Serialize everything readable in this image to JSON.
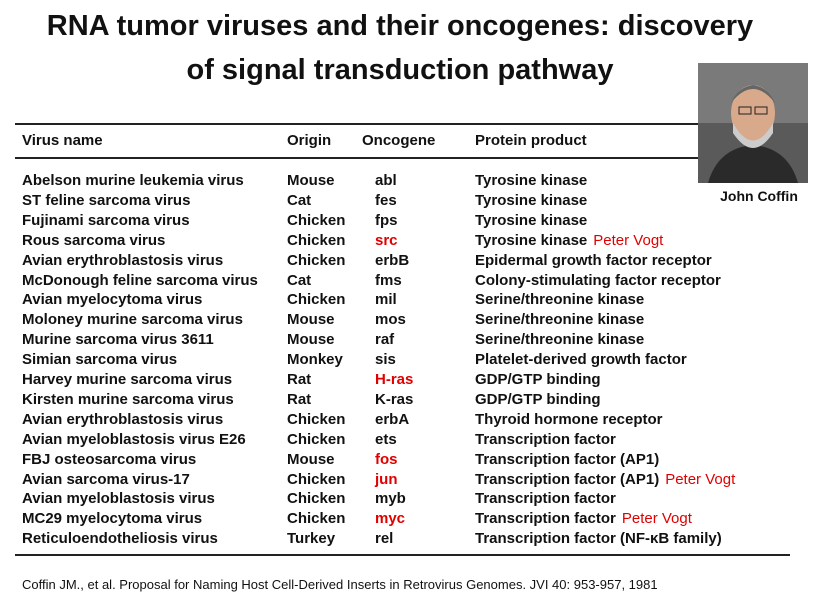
{
  "title_lines": [
    "RNA tumor viruses and their oncogenes: discovery",
    "of signal transduction pathway"
  ],
  "photo_caption": "John Coffin",
  "table": {
    "header": [
      "Virus  name",
      "Origin",
      "Oncogene",
      "Protein product"
    ],
    "highlight_color": "#e00000",
    "rows": [
      {
        "virus": "Abelson murine leukemia virus",
        "origin": "Mouse",
        "oncogene": "abl",
        "protein": "Tyrosine kinase"
      },
      {
        "virus": "ST feline sarcoma virus",
        "origin": "Cat",
        "oncogene": "fes",
        "protein": "Tyrosine kinase"
      },
      {
        "virus": "Fujinami sarcoma virus",
        "origin": "Chicken",
        "oncogene": "fps",
        "protein": "Tyrosine kinase"
      },
      {
        "virus": "Rous sarcoma virus",
        "origin": "Chicken",
        "oncogene": "src",
        "protein": "Tyrosine kinase",
        "note": "Peter Vogt",
        "highlight": true
      },
      {
        "virus": "Avian erythroblastosis virus",
        "origin": "Chicken",
        "oncogene": "erbB",
        "protein": "Epidermal growth factor receptor"
      },
      {
        "virus": "McDonough feline sarcoma virus",
        "origin": "Cat",
        "oncogene": "fms",
        "protein": "Colony-stimulating factor receptor"
      },
      {
        "virus": "Avian myelocytoma virus",
        "origin": "Chicken",
        "oncogene": "mil",
        "protein": "Serine/threonine kinase"
      },
      {
        "virus": "Moloney murine sarcoma virus",
        "origin": "Mouse",
        "oncogene": "mos",
        "protein": "Serine/threonine kinase"
      },
      {
        "virus": "Murine sarcoma virus 3611",
        "origin": "Mouse",
        "oncogene": "raf",
        "protein": "Serine/threonine kinase"
      },
      {
        "virus": "Simian sarcoma virus",
        "origin": "Monkey",
        "oncogene": "sis",
        "protein": "Platelet-derived growth factor"
      },
      {
        "virus": "Harvey murine sarcoma virus",
        "origin": "Rat",
        "oncogene": "H-ras",
        "protein": "GDP/GTP binding",
        "highlight": true
      },
      {
        "virus": "Kirsten murine sarcoma virus",
        "origin": "Rat",
        "oncogene": "K-ras",
        "protein": "GDP/GTP binding"
      },
      {
        "virus": "Avian erythroblastosis virus",
        "origin": "Chicken",
        "oncogene": "erbA",
        "protein": "Thyroid hormone receptor"
      },
      {
        "virus": "Avian myeloblastosis virus E26",
        "origin": "Chicken",
        "oncogene": "ets",
        "protein": "Transcription factor"
      },
      {
        "virus": "FBJ osteosarcoma virus",
        "origin": "Mouse",
        "oncogene": "fos",
        "protein": "Transcription factor (AP1)",
        "highlight": true
      },
      {
        "virus": "Avian sarcoma virus-17",
        "origin": "Chicken",
        "oncogene": "jun",
        "protein": "Transcription factor (AP1)",
        "note": "Peter Vogt",
        "highlight": true
      },
      {
        "virus": "Avian myeloblastosis virus",
        "origin": "Chicken",
        "oncogene": "myb",
        "protein": "Transcription factor"
      },
      {
        "virus": "MC29 myelocytoma virus",
        "origin": "Chicken",
        "oncogene": "myc",
        "protein": "Transcription factor",
        "note": "Peter Vogt",
        "highlight": true
      },
      {
        "virus": "Reticuloendotheliosis virus",
        "origin": "Turkey",
        "oncogene": "rel",
        "protein": "Transcription factor (NF-κB family)"
      }
    ]
  },
  "citation": "Coffin JM., et al. Proposal for Naming Host Cell-Derived Inserts in Retrovirus Genomes. JVI 40: 953-957, 1981"
}
